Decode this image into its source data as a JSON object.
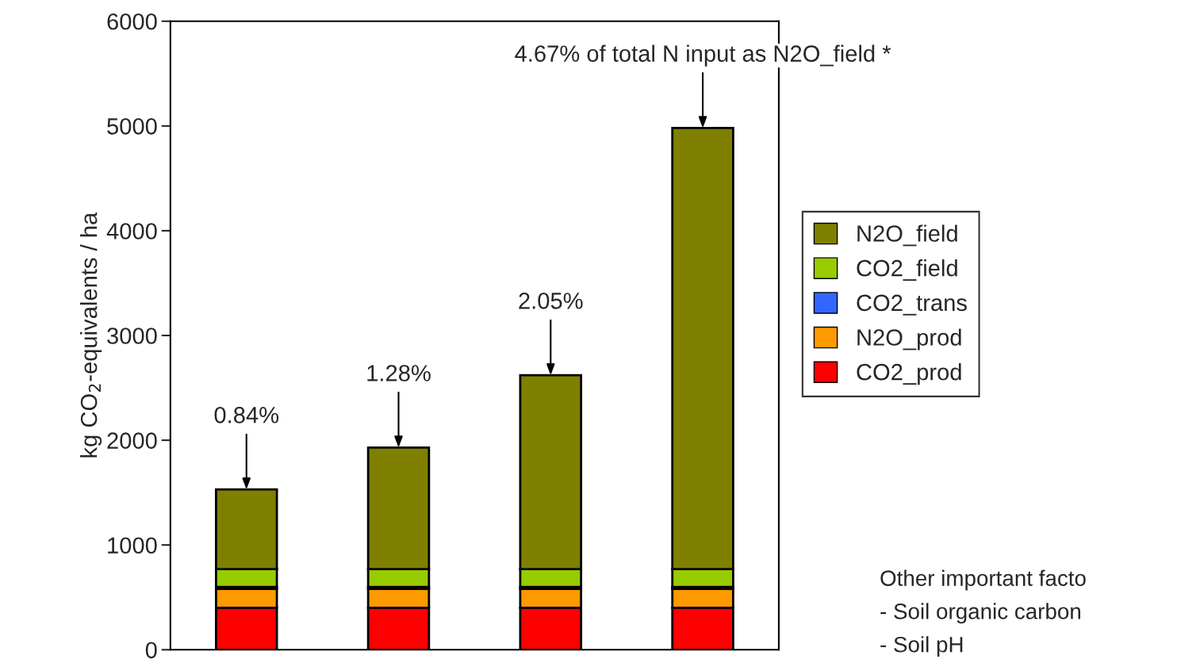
{
  "chart_data": {
    "type": "bar",
    "stacked": true,
    "ylabel": "kg CO$_{2}$-equivalents / ha",
    "categories": [
      null,
      null,
      null,
      null
    ],
    "series": [
      {
        "name": "CO2_prod",
        "color": "#ff0000",
        "values": [
          400,
          400,
          400,
          400
        ]
      },
      {
        "name": "N2O_prod",
        "color": "#ff9900",
        "values": [
          180,
          180,
          180,
          180
        ]
      },
      {
        "name": "CO2_trans",
        "color": "#3366ff",
        "values": [
          20,
          20,
          20,
          20
        ]
      },
      {
        "name": "CO2_field",
        "color": "#99cc00",
        "values": [
          170,
          170,
          170,
          170
        ]
      },
      {
        "name": "N2O_field",
        "color": "#808000",
        "values": [
          760,
          1160,
          1850,
          4210
        ]
      }
    ],
    "ylim": [
      0,
      6000
    ],
    "yticks": [
      0,
      1000,
      2000,
      3000,
      4000,
      5000,
      6000
    ],
    "tick_labels": "y",
    "grid": false,
    "legend": "right",
    "annotations": [
      "0.84%",
      "1.28%",
      "2.05%",
      "4.67% of total N input as N2O_field *",
      "Other important facto",
      "- Soil organic carbon",
      "- Soil pH"
    ]
  }
}
